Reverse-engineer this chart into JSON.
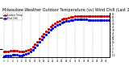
{
  "title": "Milwaukee Weather Outdoor Temperature (vs) Wind Chill (Last 24 Hours)",
  "title_fontsize": 3.5,
  "bg_color": "#ffffff",
  "plot_bg_color": "#ffffff",
  "grid_color": "#888888",
  "line1_color": "#cc0000",
  "line2_color": "#0000cc",
  "line1_label": "Outdoor Temp",
  "line2_label": "Wind Chill",
  "ylim": [
    -14,
    58
  ],
  "xlim": [
    0,
    47
  ],
  "n_points": 48,
  "temp_values": [
    -5,
    -4,
    -4,
    -3.5,
    -3,
    -3,
    -3,
    -4,
    -4,
    -4,
    -3,
    -2,
    0,
    3,
    7,
    11,
    16,
    20,
    24,
    28,
    32,
    35,
    38,
    41,
    43,
    45,
    47,
    48,
    49,
    50,
    51,
    51.5,
    52,
    52.5,
    52.5,
    52,
    52,
    52,
    52,
    52,
    52,
    52,
    52,
    52,
    52,
    52,
    52,
    52
  ],
  "chill_values": [
    -12,
    -11,
    -11,
    -10.5,
    -10,
    -10,
    -10,
    -11,
    -11,
    -10,
    -9,
    -7,
    -5,
    -2,
    2,
    6,
    11,
    15,
    19,
    23,
    27,
    30,
    33,
    36,
    38,
    40,
    42,
    43,
    44,
    45,
    46,
    46.5,
    47,
    47.5,
    47.5,
    47,
    47,
    47,
    46,
    46,
    46,
    46,
    46,
    46,
    46,
    46,
    46,
    46
  ],
  "x_tick_step": 2,
  "y_tick_values": [
    55,
    50,
    45,
    40,
    35,
    30,
    25,
    20,
    15,
    10,
    5,
    0,
    -5,
    -10
  ],
  "vgrid_step": 4,
  "marker_size": 2.5,
  "linewidth": 0.5
}
